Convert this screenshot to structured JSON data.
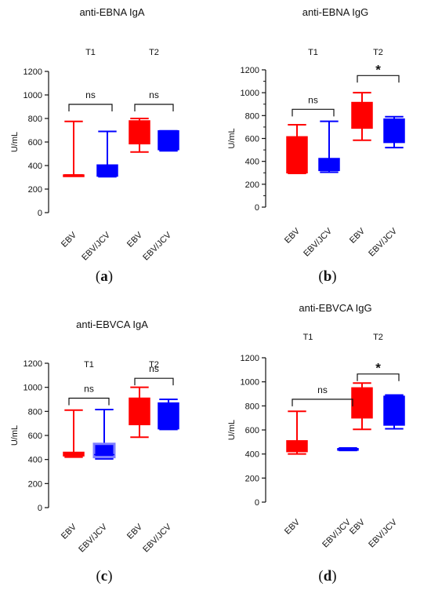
{
  "colors": {
    "ebv": "#ff0000",
    "ebv_jcv": "#0000ff",
    "ebv_jcv_light": "#7f7fff",
    "axis": "#111111"
  },
  "chart_data": [
    {
      "type": "box",
      "title": "anti-EBNA IgA",
      "ylabel": "U/mL",
      "ylim": [
        0,
        1200
      ],
      "yticks": [
        "0",
        "200",
        "400",
        "600",
        "800",
        "1000",
        "1200"
      ],
      "minor_ticks": false,
      "groups": [
        "T1",
        "T2"
      ],
      "categories": [
        "EBV",
        "EBV/JCV",
        "EBV",
        "EBV/JCV"
      ],
      "boxes": [
        {
          "min": 320,
          "q1": 320,
          "median": 320,
          "q3": 320,
          "max": 775
        },
        {
          "min": 305,
          "q1": 310,
          "median": 330,
          "q3": 405,
          "max": 690
        },
        {
          "min": 515,
          "q1": 585,
          "median": 760,
          "q3": 780,
          "max": 800
        },
        {
          "min": 525,
          "q1": 535,
          "median": 545,
          "q3": 695,
          "max": 695
        }
      ],
      "comparisons": [
        {
          "label": "ns",
          "from": 0,
          "to": 1,
          "y": 920
        },
        {
          "label": "ns",
          "from": 2,
          "to": 3,
          "y": 920
        }
      ],
      "panel_letter": "a"
    },
    {
      "type": "box",
      "title": "anti-EBNA IgG",
      "ylabel": "U/mL",
      "ylim": [
        0,
        1200
      ],
      "yticks": [
        "0",
        "200",
        "400",
        "600",
        "800",
        "1000",
        "1200"
      ],
      "minor_ticks": true,
      "groups": [
        "T1",
        "T2"
      ],
      "categories": [
        "EBV",
        "EBV/JCV",
        "EBV",
        "EBV/JCV"
      ],
      "boxes": [
        {
          "min": 295,
          "q1": 300,
          "median": 305,
          "q3": 615,
          "max": 720
        },
        {
          "min": 305,
          "q1": 320,
          "median": 325,
          "q3": 425,
          "max": 750
        },
        {
          "min": 585,
          "q1": 690,
          "median": 700,
          "q3": 915,
          "max": 1000
        },
        {
          "min": 520,
          "q1": 565,
          "median": 570,
          "q3": 770,
          "max": 790
        }
      ],
      "comparisons": [
        {
          "label": "ns",
          "from": 0,
          "to": 1,
          "y": 855
        },
        {
          "label": "*",
          "from": 2,
          "to": 3,
          "y": 1150
        }
      ],
      "panel_letter": "b"
    },
    {
      "type": "box",
      "title": "anti-EBVCA IgA",
      "ylabel": "U/mL",
      "ylim": [
        0,
        1200
      ],
      "yticks": [
        "0",
        "200",
        "400",
        "600",
        "800",
        "1000",
        "1200"
      ],
      "minor_ticks": false,
      "groups": [
        "T1",
        "T2"
      ],
      "categories": [
        "EBV",
        "EBV/JCV",
        "EBV",
        "EBV/JCV"
      ],
      "boxes": [
        {
          "min": 420,
          "q1": 430,
          "median": 440,
          "q3": 460,
          "max": 810
        },
        {
          "min": 405,
          "q1": 420,
          "median": 440,
          "q3": 530,
          "max": 815
        },
        {
          "min": 585,
          "q1": 690,
          "median": 860,
          "q3": 910,
          "max": 1000
        },
        {
          "min": 650,
          "q1": 655,
          "median": 660,
          "q3": 870,
          "max": 900
        }
      ],
      "comparisons": [
        {
          "label": "ns",
          "from": 0,
          "to": 1,
          "y": 910
        },
        {
          "label": "ns",
          "from": 2,
          "to": 3,
          "y": 1075
        }
      ],
      "panel_letter": "c"
    },
    {
      "type": "box",
      "title": "anti-EBVCA IgG",
      "ylabel": "U/mL",
      "ylim": [
        0,
        1200
      ],
      "yticks": [
        "0",
        "200",
        "400",
        "600",
        "800",
        "1000",
        "1200"
      ],
      "minor_ticks": false,
      "groups": [
        "T1",
        "T2"
      ],
      "categories": [
        "EBV",
        "EBV/JCV",
        "EBV",
        "EBV/JCV"
      ],
      "boxes": [
        {
          "min": 400,
          "q1": 420,
          "median": 430,
          "q3": 510,
          "max": 755
        },
        {
          "min": 430,
          "q1": 435,
          "median": 440,
          "q3": 445,
          "max": 450
        },
        {
          "min": 605,
          "q1": 700,
          "median": 900,
          "q3": 950,
          "max": 990
        },
        {
          "min": 610,
          "q1": 640,
          "median": 650,
          "q3": 880,
          "max": 890
        }
      ],
      "comparisons": [
        {
          "label": "ns",
          "from": 0,
          "to": 1,
          "y": 855
        },
        {
          "label": "*",
          "from": 2,
          "to": 3,
          "y": 1065
        }
      ],
      "panel_letter": "d"
    }
  ]
}
